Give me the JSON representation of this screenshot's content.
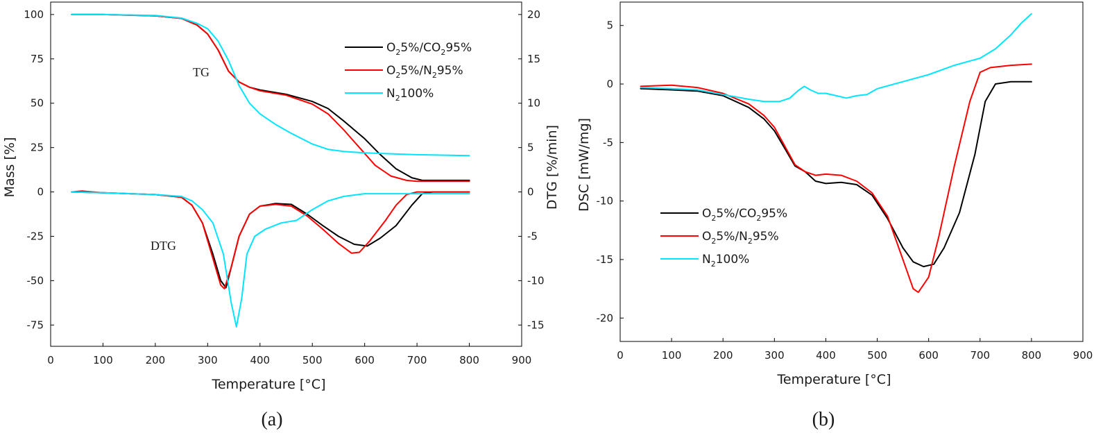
{
  "chart_data": [
    {
      "panel_label": "(a)",
      "type": "line",
      "xlabel": "Temperature [°C]",
      "ylabel": "Mass [%]",
      "ylabel_right": "DTG [%/min]",
      "xlim": [
        0,
        900
      ],
      "ylim": [
        -87,
        107
      ],
      "ylim_right": [
        -17.4,
        21.4
      ],
      "xticks": [
        "0",
        "100",
        "200",
        "300",
        "400",
        "500",
        "600",
        "700",
        "800",
        "900"
      ],
      "yticks": [
        "100",
        "75",
        "50",
        "25",
        "0",
        "-25",
        "-50",
        "-75"
      ],
      "yticks_right": [
        "20",
        "15",
        "10",
        "5",
        "0",
        "-5",
        "-10",
        "-15"
      ],
      "grid": false,
      "legend_position": "top-right",
      "annotations": [
        {
          "text": "TG",
          "x": 300,
          "y": 70
        },
        {
          "text": "DTG",
          "x": 225,
          "y": -38
        }
      ],
      "series": [
        {
          "name": "O2 5%/CO2 95% (TG)",
          "legend_label": {
            "parts": [
              "O",
              "2",
              "5%/CO",
              "2",
              "95%"
            ]
          },
          "color": "#000000",
          "group": "TG",
          "points": [
            [
              40,
              100
            ],
            [
              100,
              100
            ],
            [
              200,
              99.3
            ],
            [
              250,
              97.8
            ],
            [
              280,
              94
            ],
            [
              300,
              89
            ],
            [
              320,
              80
            ],
            [
              340,
              68
            ],
            [
              360,
              62
            ],
            [
              380,
              59
            ],
            [
              400,
              57.5
            ],
            [
              450,
              55
            ],
            [
              500,
              51
            ],
            [
              530,
              47
            ],
            [
              560,
              40
            ],
            [
              600,
              30
            ],
            [
              630,
              21
            ],
            [
              660,
              13
            ],
            [
              690,
              8
            ],
            [
              710,
              6.5
            ],
            [
              800,
              6.5
            ]
          ]
        },
        {
          "name": "O2 5%/N2 95% (TG)",
          "legend_label": {
            "parts": [
              "O",
              "2",
              "5%/N",
              "2",
              "95%"
            ]
          },
          "color": "#ff0000",
          "group": "TG",
          "points": [
            [
              40,
              100
            ],
            [
              100,
              100
            ],
            [
              200,
              99.3
            ],
            [
              250,
              97.8
            ],
            [
              280,
              94
            ],
            [
              300,
              89
            ],
            [
              320,
              80
            ],
            [
              340,
              68
            ],
            [
              360,
              62
            ],
            [
              380,
              59
            ],
            [
              400,
              57
            ],
            [
              450,
              54.5
            ],
            [
              500,
              49.5
            ],
            [
              530,
              44
            ],
            [
              560,
              35
            ],
            [
              590,
              25
            ],
            [
              620,
              15
            ],
            [
              650,
              9
            ],
            [
              680,
              6.5
            ],
            [
              700,
              6
            ],
            [
              800,
              6
            ]
          ]
        },
        {
          "name": "N2 100% (TG)",
          "legend_label": {
            "parts": [
              "N",
              "2",
              "100%"
            ]
          },
          "color": "#00e5ff",
          "group": "TG",
          "points": [
            [
              40,
              100
            ],
            [
              100,
              100
            ],
            [
              200,
              99.5
            ],
            [
              250,
              98
            ],
            [
              280,
              95
            ],
            [
              300,
              92
            ],
            [
              320,
              85
            ],
            [
              340,
              74
            ],
            [
              360,
              60
            ],
            [
              380,
              50
            ],
            [
              400,
              44
            ],
            [
              430,
              38
            ],
            [
              460,
              33
            ],
            [
              500,
              27
            ],
            [
              530,
              24
            ],
            [
              560,
              22.8
            ],
            [
              600,
              22
            ],
            [
              650,
              21.5
            ],
            [
              700,
              21
            ],
            [
              800,
              20.5
            ]
          ]
        },
        {
          "name": "O2 5%/CO2 95% (DTG)",
          "color": "#000000",
          "group": "DTG",
          "points": [
            [
              40,
              0
            ],
            [
              100,
              -0.1
            ],
            [
              200,
              -0.3
            ],
            [
              250,
              -0.6
            ],
            [
              270,
              -1.5
            ],
            [
              290,
              -3.5
            ],
            [
              310,
              -7
            ],
            [
              325,
              -10
            ],
            [
              335,
              -10.8
            ],
            [
              345,
              -8.5
            ],
            [
              360,
              -5
            ],
            [
              380,
              -2.5
            ],
            [
              400,
              -1.6
            ],
            [
              430,
              -1.3
            ],
            [
              460,
              -1.4
            ],
            [
              490,
              -2.5
            ],
            [
              520,
              -3.8
            ],
            [
              550,
              -5
            ],
            [
              580,
              -5.9
            ],
            [
              605,
              -6.1
            ],
            [
              630,
              -5.2
            ],
            [
              660,
              -3.8
            ],
            [
              690,
              -1.5
            ],
            [
              710,
              -0.2
            ],
            [
              730,
              0
            ],
            [
              800,
              0
            ]
          ]
        },
        {
          "name": "O2 5%/N2 95% (DTG)",
          "color": "#ff0000",
          "group": "DTG",
          "points": [
            [
              40,
              0
            ],
            [
              60,
              0.1
            ],
            [
              100,
              -0.1
            ],
            [
              200,
              -0.3
            ],
            [
              250,
              -0.6
            ],
            [
              270,
              -1.5
            ],
            [
              290,
              -3.5
            ],
            [
              310,
              -7.5
            ],
            [
              325,
              -10.5
            ],
            [
              332,
              -10.9
            ],
            [
              345,
              -8.5
            ],
            [
              360,
              -5
            ],
            [
              380,
              -2.5
            ],
            [
              400,
              -1.6
            ],
            [
              430,
              -1.4
            ],
            [
              460,
              -1.6
            ],
            [
              490,
              -2.7
            ],
            [
              520,
              -4.2
            ],
            [
              550,
              -5.8
            ],
            [
              575,
              -6.9
            ],
            [
              590,
              -6.8
            ],
            [
              610,
              -5.5
            ],
            [
              640,
              -3.2
            ],
            [
              660,
              -1.5
            ],
            [
              680,
              -0.3
            ],
            [
              700,
              0
            ],
            [
              800,
              0
            ]
          ]
        },
        {
          "name": "N2 100% (DTG)",
          "color": "#00e5ff",
          "group": "DTG",
          "points": [
            [
              40,
              0
            ],
            [
              100,
              -0.1
            ],
            [
              200,
              -0.3
            ],
            [
              250,
              -0.5
            ],
            [
              270,
              -1
            ],
            [
              290,
              -2
            ],
            [
              310,
              -3.5
            ],
            [
              330,
              -7
            ],
            [
              345,
              -12.5
            ],
            [
              355,
              -15.2
            ],
            [
              365,
              -12
            ],
            [
              375,
              -7
            ],
            [
              390,
              -5
            ],
            [
              410,
              -4.2
            ],
            [
              440,
              -3.5
            ],
            [
              470,
              -3.2
            ],
            [
              500,
              -2
            ],
            [
              530,
              -1
            ],
            [
              560,
              -0.5
            ],
            [
              600,
              -0.2
            ],
            [
              700,
              -0.2
            ],
            [
              800,
              -0.2
            ]
          ]
        }
      ]
    },
    {
      "panel_label": "(b)",
      "type": "line",
      "xlabel": "Temperature [°C]",
      "ylabel": "DSC [mW/mg]",
      "xlim": [
        0,
        900
      ],
      "ylim": [
        -22,
        7
      ],
      "xticks": [
        "0",
        "100",
        "200",
        "300",
        "400",
        "500",
        "600",
        "700",
        "800",
        "900"
      ],
      "yticks": [
        "5",
        "0",
        "-5",
        "-10",
        "-15",
        "-20"
      ],
      "grid": false,
      "legend_position": "bottom-left",
      "series": [
        {
          "name": "O2 5%/CO2 95%",
          "legend_label": {
            "parts": [
              "O",
              "2",
              "5%/CO",
              "2",
              "95%"
            ]
          },
          "color": "#000000",
          "points": [
            [
              40,
              -0.4
            ],
            [
              100,
              -0.5
            ],
            [
              150,
              -0.6
            ],
            [
              200,
              -1
            ],
            [
              250,
              -2
            ],
            [
              280,
              -3
            ],
            [
              300,
              -4
            ],
            [
              320,
              -5.5
            ],
            [
              340,
              -7
            ],
            [
              360,
              -7.5
            ],
            [
              380,
              -8.3
            ],
            [
              400,
              -8.5
            ],
            [
              430,
              -8.4
            ],
            [
              460,
              -8.6
            ],
            [
              490,
              -9.5
            ],
            [
              520,
              -11.5
            ],
            [
              550,
              -14
            ],
            [
              570,
              -15.2
            ],
            [
              590,
              -15.6
            ],
            [
              610,
              -15.4
            ],
            [
              630,
              -14
            ],
            [
              660,
              -11
            ],
            [
              690,
              -6
            ],
            [
              710,
              -1.5
            ],
            [
              730,
              0
            ],
            [
              760,
              0.2
            ],
            [
              800,
              0.2
            ]
          ]
        },
        {
          "name": "O2 5%/N2 95%",
          "legend_label": {
            "parts": [
              "O",
              "2",
              "5%/N",
              "2",
              "95%"
            ]
          },
          "color": "#ff0000",
          "points": [
            [
              40,
              -0.2
            ],
            [
              100,
              -0.1
            ],
            [
              150,
              -0.3
            ],
            [
              200,
              -0.8
            ],
            [
              250,
              -1.7
            ],
            [
              280,
              -2.7
            ],
            [
              300,
              -3.7
            ],
            [
              320,
              -5.3
            ],
            [
              340,
              -6.9
            ],
            [
              360,
              -7.5
            ],
            [
              380,
              -7.8
            ],
            [
              400,
              -7.7
            ],
            [
              430,
              -7.8
            ],
            [
              460,
              -8.3
            ],
            [
              490,
              -9.3
            ],
            [
              520,
              -11.3
            ],
            [
              550,
              -15
            ],
            [
              570,
              -17.5
            ],
            [
              580,
              -17.8
            ],
            [
              600,
              -16.5
            ],
            [
              620,
              -13
            ],
            [
              650,
              -7
            ],
            [
              680,
              -1.5
            ],
            [
              700,
              1
            ],
            [
              720,
              1.4
            ],
            [
              760,
              1.6
            ],
            [
              800,
              1.7
            ]
          ]
        },
        {
          "name": "N2 100%",
          "legend_label": {
            "parts": [
              "N",
              "2",
              "100%"
            ]
          },
          "color": "#00e5ff",
          "points": [
            [
              40,
              -0.3
            ],
            [
              100,
              -0.4
            ],
            [
              150,
              -0.5
            ],
            [
              200,
              -0.9
            ],
            [
              250,
              -1.3
            ],
            [
              280,
              -1.5
            ],
            [
              310,
              -1.5
            ],
            [
              330,
              -1.2
            ],
            [
              345,
              -0.6
            ],
            [
              358,
              -0.2
            ],
            [
              370,
              -0.5
            ],
            [
              385,
              -0.8
            ],
            [
              400,
              -0.8
            ],
            [
              420,
              -1
            ],
            [
              440,
              -1.2
            ],
            [
              460,
              -1
            ],
            [
              480,
              -0.9
            ],
            [
              500,
              -0.4
            ],
            [
              550,
              0.2
            ],
            [
              600,
              0.8
            ],
            [
              650,
              1.6
            ],
            [
              700,
              2.2
            ],
            [
              730,
              3
            ],
            [
              760,
              4.2
            ],
            [
              780,
              5.2
            ],
            [
              800,
              6
            ]
          ]
        }
      ]
    }
  ]
}
